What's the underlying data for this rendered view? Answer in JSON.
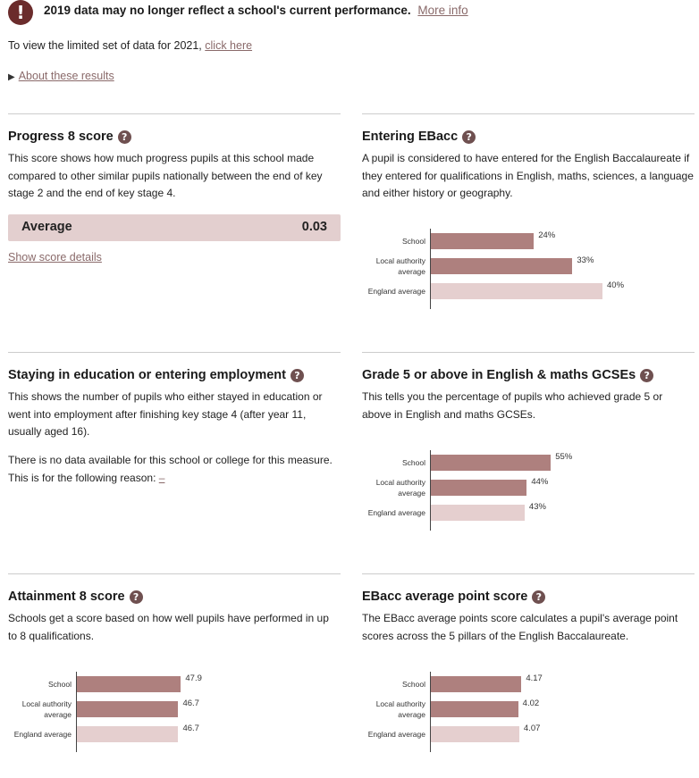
{
  "banner": {
    "icon": "exclamation-icon",
    "text": "2019 data may no longer reflect a school's current performance.",
    "link": "More info"
  },
  "view_2021": {
    "prefix": "To view the limited set of data for 2021, ",
    "link": "click here"
  },
  "about": {
    "arrow": "▶",
    "label": "About these results"
  },
  "colors": {
    "school": "#ae807e",
    "local": "#ae807e",
    "england": "#e5cfcf",
    "score_bg": "#e3cfcf"
  },
  "sections": {
    "progress8": {
      "title": "Progress 8 score",
      "desc": "This score shows how much progress pupils at this school made compared to other similar pupils nationally between the end of key stage 2 and the end of key stage 4.",
      "score_label": "Average",
      "score_value": "0.03",
      "details_link": "Show score details"
    },
    "ebacc_entering": {
      "title": "Entering EBacc",
      "desc": "A pupil is considered to have entered for the English Baccalaureate if they entered for qualifications in English, maths, sciences, a language and either history or geography."
    },
    "staying": {
      "title": "Staying in education or entering employment",
      "desc": "This shows the number of pupils who either stayed in education or went into employment after finishing key stage 4 (after year 11, usually aged 16).",
      "nodata": "There is no data available for this school or college for this measure.",
      "reason_prefix": "This is for the following reason: ",
      "reason_link": "–"
    },
    "grade5": {
      "title": "Grade 5 or above in English & maths GCSEs",
      "desc": "This tells you the percentage of pupils who achieved grade 5 or above in English and maths GCSEs."
    },
    "attainment8": {
      "title": "Attainment 8 score",
      "desc": "Schools get a score based on how well pupils have performed in up to 8 qualifications."
    },
    "ebacc_aps": {
      "title": "EBacc average point score",
      "desc": "The EBacc average points score calculates a pupil's average point scores across the 5 pillars of the English Baccalaureate."
    }
  },
  "chart_data": [
    {
      "type": "bar",
      "id": "ebacc_entering",
      "categories": [
        "School",
        "Local authority average",
        "England average"
      ],
      "values": [
        24,
        33,
        40
      ],
      "labels": [
        "24%",
        "33%",
        "40%"
      ],
      "xlim": [
        0,
        100
      ]
    },
    {
      "type": "bar",
      "id": "grade5",
      "categories": [
        "School",
        "Local authority average",
        "England average"
      ],
      "values": [
        55,
        44,
        43
      ],
      "labels": [
        "55%",
        "44%",
        "43%"
      ],
      "xlim": [
        0,
        100
      ]
    },
    {
      "type": "bar",
      "id": "attainment8",
      "categories": [
        "School",
        "Local authority average",
        "England average"
      ],
      "values": [
        47.9,
        46.7,
        46.7
      ],
      "labels": [
        "47.9",
        "46.7",
        "46.7"
      ],
      "xlim": [
        0,
        90
      ]
    },
    {
      "type": "bar",
      "id": "ebacc_aps",
      "categories": [
        "School",
        "Local authority average",
        "England average"
      ],
      "values": [
        4.17,
        4.02,
        4.07
      ],
      "labels": [
        "4.17",
        "4.02",
        "4.07"
      ],
      "xlim": [
        0,
        9
      ]
    }
  ]
}
